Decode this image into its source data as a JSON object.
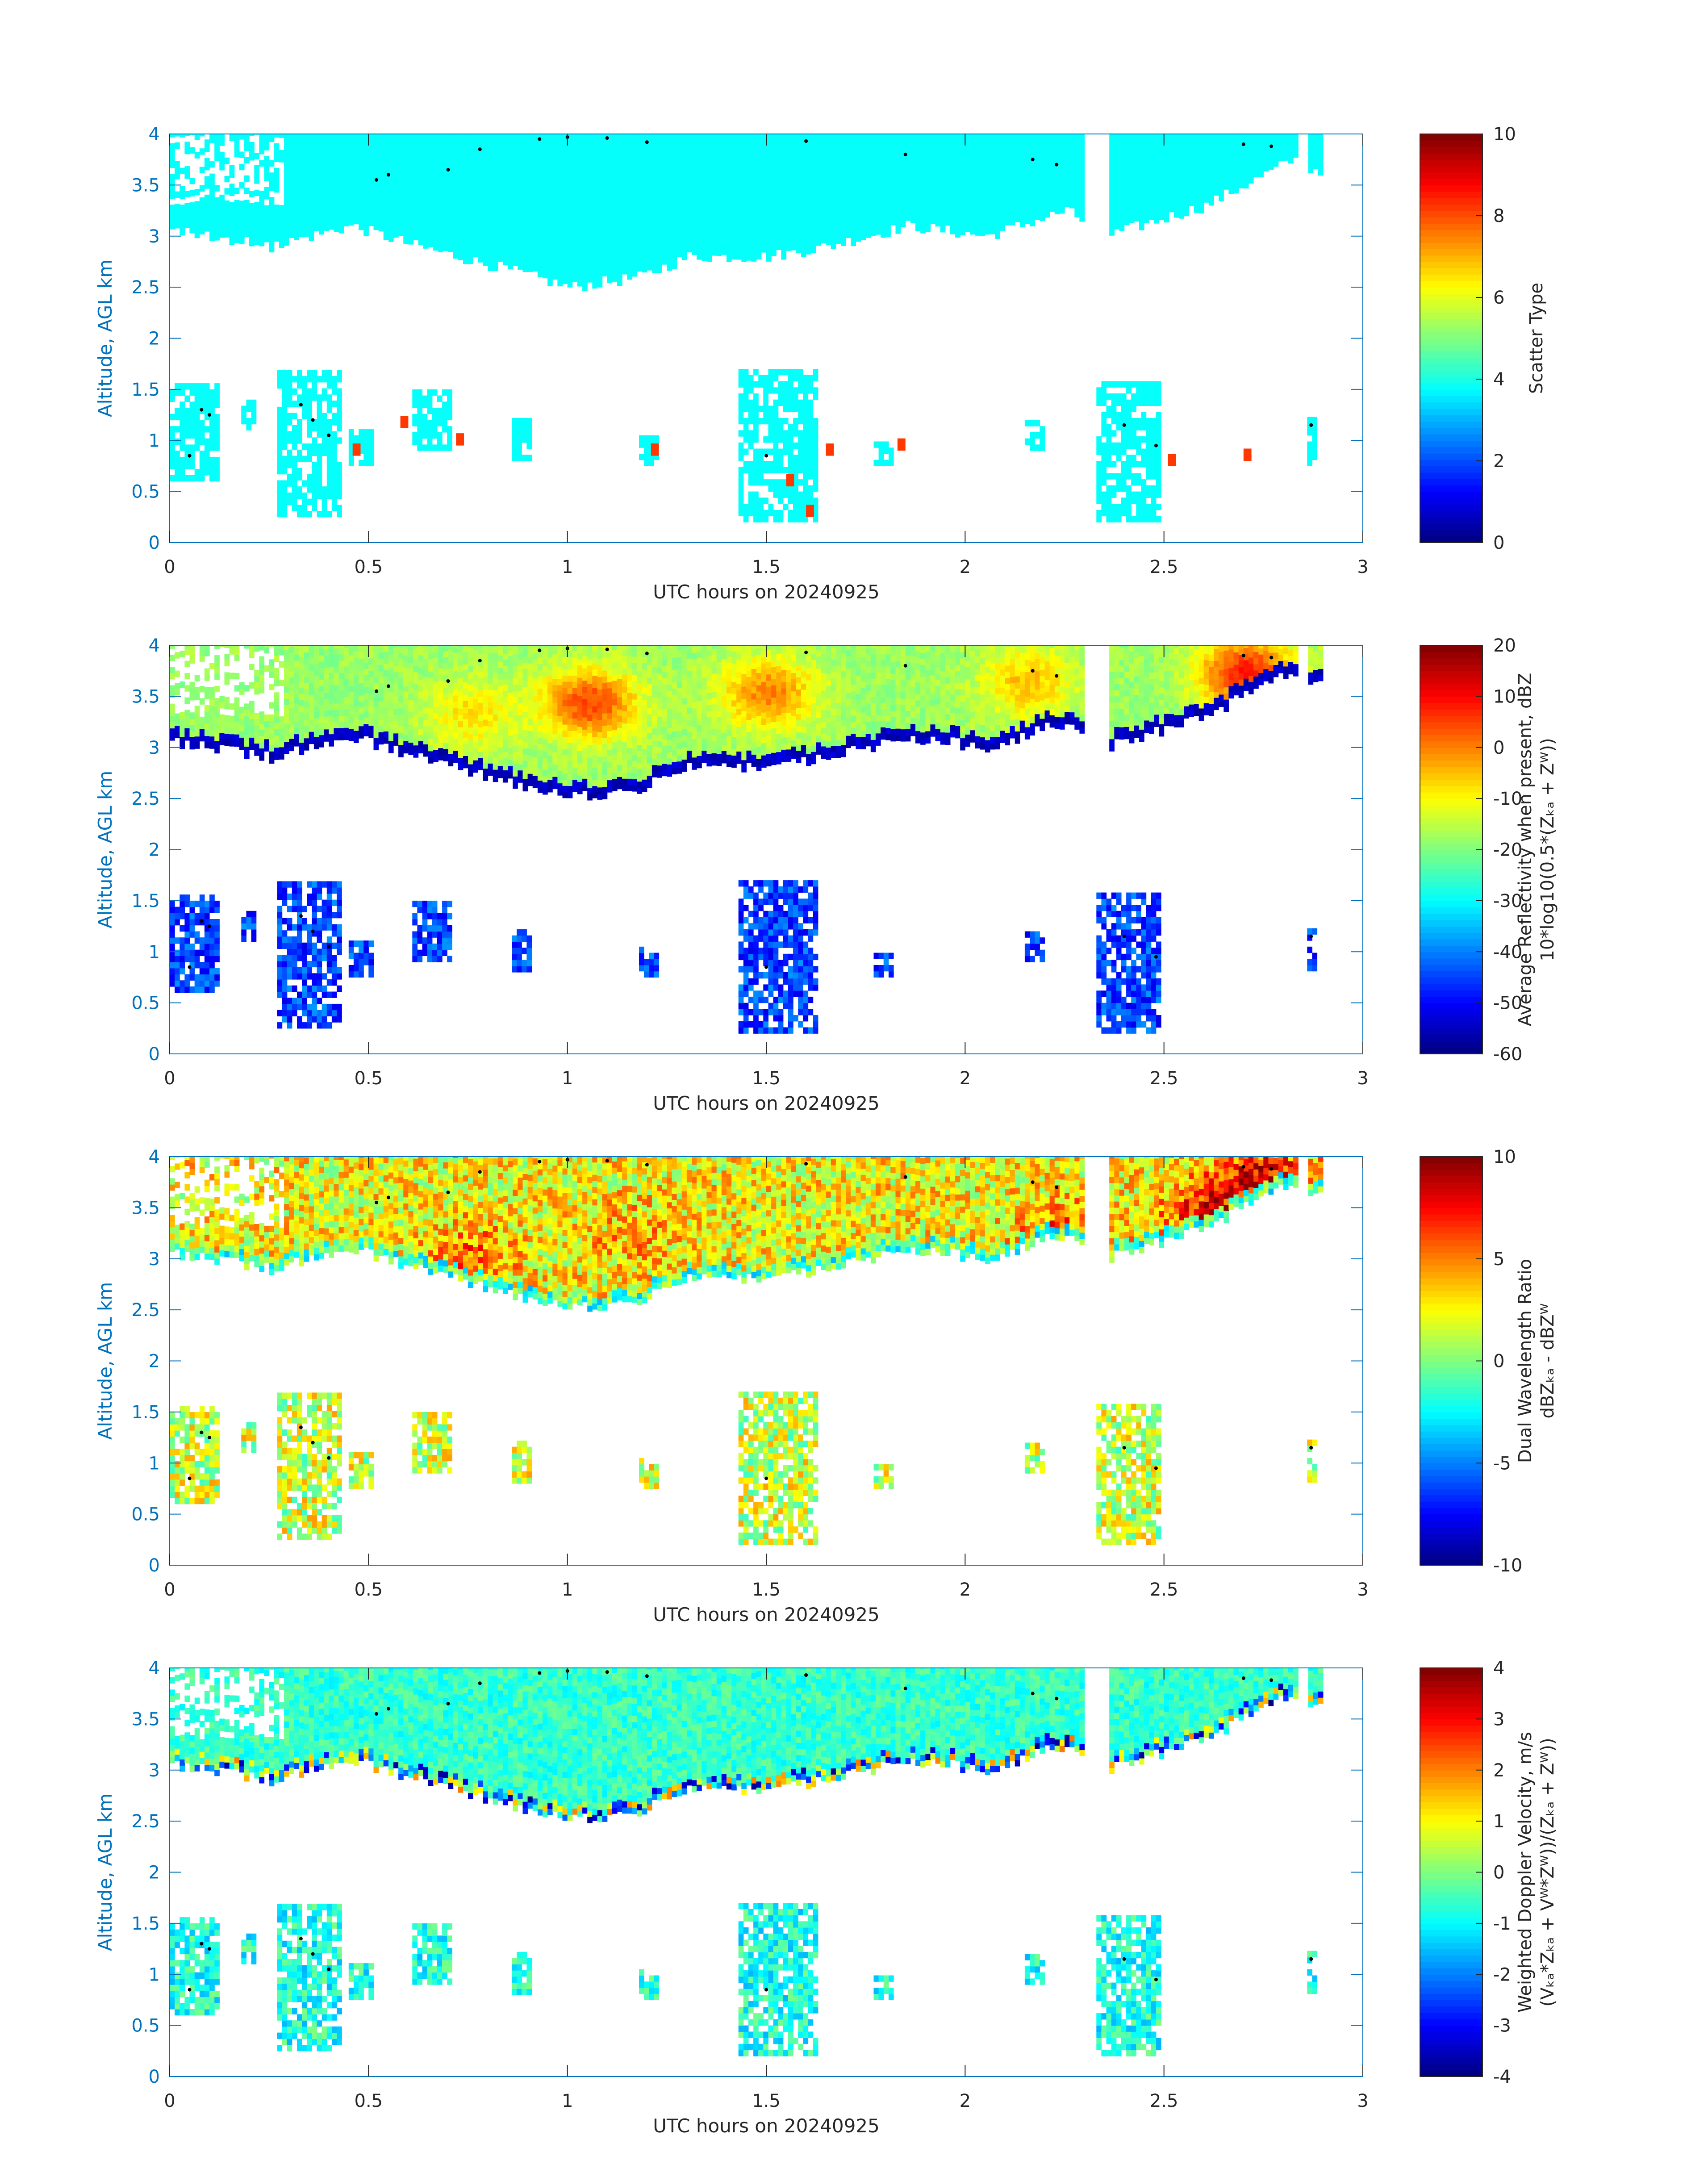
{
  "chart_data": [
    {
      "type": "heatmap",
      "xlabel": "UTC hours on 20240925",
      "ylabel": "Altitude, AGL km",
      "xlim": [
        0,
        3
      ],
      "ylim": [
        0,
        4
      ],
      "xticks": [
        "0",
        "0.5",
        "1",
        "1.5",
        "2",
        "2.5",
        "3"
      ],
      "yticks": [
        "0",
        "0.5",
        "1",
        "1.5",
        "2",
        "2.5",
        "3",
        "3.5",
        "4"
      ],
      "colorbar": {
        "label_lines": [
          "Scatter Type"
        ],
        "range": [
          0,
          10
        ],
        "ticks": [
          "0",
          "2",
          "4",
          "6",
          "8",
          "10"
        ]
      },
      "dominant_value": 3.8,
      "secondary_value": 8.2,
      "upper_layer": {
        "top": [
          3.05,
          2.9,
          3.1,
          2.9,
          2.7,
          2.5,
          2.6,
          2.8,
          2.8,
          2.9,
          3.1,
          3.0,
          3.25,
          3.0,
          3.3,
          3.75,
          3.6
        ],
        "top_x": [
          0,
          0.25,
          0.45,
          0.62,
          0.82,
          1.0,
          1.18,
          1.3,
          1.5,
          1.65,
          1.85,
          2.05,
          2.25,
          2.35,
          2.6,
          2.82,
          2.9
        ],
        "gaps": [
          [
            2.29,
            2.35
          ],
          [
            2.83,
            2.86
          ]
        ]
      },
      "lower_cells": [
        {
          "x": [
            0.0,
            0.12
          ],
          "y": [
            0.6,
            1.55
          ]
        },
        {
          "x": [
            0.18,
            0.21
          ],
          "y": [
            1.1,
            1.35
          ]
        },
        {
          "x": [
            0.27,
            0.43
          ],
          "y": [
            0.25,
            1.65
          ]
        },
        {
          "x": [
            0.45,
            0.51
          ],
          "y": [
            0.75,
            1.1
          ]
        },
        {
          "x": [
            0.61,
            0.7
          ],
          "y": [
            0.9,
            1.45
          ]
        },
        {
          "x": [
            0.86,
            0.9
          ],
          "y": [
            0.8,
            1.2
          ]
        },
        {
          "x": [
            1.18,
            1.22
          ],
          "y": [
            0.75,
            1.0
          ]
        },
        {
          "x": [
            1.43,
            1.62
          ],
          "y": [
            0.2,
            1.65
          ]
        },
        {
          "x": [
            1.77,
            1.81
          ],
          "y": [
            0.75,
            0.95
          ]
        },
        {
          "x": [
            2.15,
            2.2
          ],
          "y": [
            0.9,
            1.15
          ]
        },
        {
          "x": [
            2.33,
            2.49
          ],
          "y": [
            0.2,
            1.55
          ]
        },
        {
          "x": [
            2.86,
            2.88
          ],
          "y": [
            0.75,
            1.2
          ]
        }
      ],
      "secondary_patches": [
        [
          0.46,
          0.85
        ],
        [
          0.58,
          1.12
        ],
        [
          0.72,
          0.95
        ],
        [
          1.21,
          0.85
        ],
        [
          1.55,
          0.55
        ],
        [
          1.6,
          0.25
        ],
        [
          1.65,
          0.85
        ],
        [
          1.83,
          0.9
        ],
        [
          2.51,
          0.75
        ],
        [
          2.7,
          0.8
        ]
      ],
      "markers": [
        [
          0.05,
          0.85
        ],
        [
          0.08,
          1.3
        ],
        [
          0.1,
          1.25
        ],
        [
          0.33,
          1.35
        ],
        [
          0.36,
          1.2
        ],
        [
          0.4,
          1.05
        ],
        [
          0.52,
          3.55
        ],
        [
          0.55,
          3.6
        ],
        [
          0.7,
          3.65
        ],
        [
          0.78,
          3.85
        ],
        [
          0.93,
          3.95
        ],
        [
          1.0,
          3.97
        ],
        [
          1.1,
          3.96
        ],
        [
          1.2,
          3.92
        ],
        [
          1.5,
          0.85
        ],
        [
          1.6,
          3.93
        ],
        [
          1.85,
          3.8
        ],
        [
          2.17,
          3.75
        ],
        [
          2.23,
          3.7
        ],
        [
          2.4,
          1.15
        ],
        [
          2.48,
          0.95
        ],
        [
          2.7,
          3.9
        ],
        [
          2.77,
          3.88
        ],
        [
          2.87,
          1.15
        ]
      ],
      "overlay_field": 0
    },
    {
      "type": "heatmap",
      "xlabel": "UTC hours on 20240925",
      "ylabel": "Altitude, AGL km",
      "xlim": [
        0,
        3
      ],
      "ylim": [
        0,
        4
      ],
      "xticks": [
        "0",
        "0.5",
        "1",
        "1.5",
        "2",
        "2.5",
        "3"
      ],
      "yticks": [
        "0",
        "0.5",
        "1",
        "1.5",
        "2",
        "2.5",
        "3",
        "3.5",
        "4"
      ],
      "colorbar": {
        "label_lines": [
          "Average Reflectivity when present, dBZ",
          "10*log10(0.5*(Zₖₐ + Zᵂ))"
        ],
        "range": [
          -60,
          20
        ],
        "ticks": [
          "-60",
          "-50",
          "-40",
          "-30",
          "-20",
          "-10",
          "0",
          "10",
          "20"
        ]
      },
      "upper_cores": [
        {
          "x": 1.05,
          "y": 3.4,
          "value": 5
        },
        {
          "x": 1.5,
          "y": 3.5,
          "value": 0
        },
        {
          "x": 0.75,
          "y": 3.3,
          "value": -8
        },
        {
          "x": 2.15,
          "y": 3.6,
          "value": -5
        },
        {
          "x": 2.7,
          "y": 3.7,
          "value": 8
        }
      ],
      "upper_background": -18,
      "edge_value": -55,
      "lower_value": -45
    },
    {
      "type": "heatmap",
      "xlabel": "UTC hours on 20240925",
      "ylabel": "Altitude, AGL km",
      "xlim": [
        0,
        3
      ],
      "ylim": [
        0,
        4
      ],
      "xticks": [
        "0",
        "0.5",
        "1",
        "1.5",
        "2",
        "2.5",
        "3"
      ],
      "yticks": [
        "0",
        "0.5",
        "1",
        "1.5",
        "2",
        "2.5",
        "3",
        "3.5",
        "4"
      ],
      "colorbar": {
        "label_lines": [
          "Dual Wavelength Ratio",
          "dBZₖₐ - dBZᵂ"
        ],
        "range": [
          -10,
          10
        ],
        "ticks": [
          "-10",
          "-5",
          "0",
          "5",
          "10"
        ]
      },
      "upper_cores": [
        {
          "x": 2.6,
          "y": 3.4,
          "value": 7
        },
        {
          "x": 2.75,
          "y": 3.75,
          "value": 8
        },
        {
          "x": 0.75,
          "y": 3.0,
          "value": 5
        },
        {
          "x": 1.15,
          "y": 3.2,
          "value": 4
        },
        {
          "x": 2.25,
          "y": 3.2,
          "value": 6
        }
      ],
      "upper_background": 2.5,
      "edge_value": -1,
      "lower_value": 1.5
    },
    {
      "type": "heatmap",
      "xlabel": "UTC hours on 20240925",
      "ylabel": "Altitude, AGL km",
      "xlim": [
        0,
        3
      ],
      "ylim": [
        0,
        4
      ],
      "xticks": [
        "0",
        "0.5",
        "1",
        "1.5",
        "2",
        "2.5",
        "3"
      ],
      "yticks": [
        "0",
        "0.5",
        "1",
        "1.5",
        "2",
        "2.5",
        "3",
        "3.5",
        "4"
      ],
      "colorbar": {
        "label_lines": [
          "Weighted Doppler Velocity, m/s",
          "(Vₖₐ*Zₖₐ + Vᵂ*Zᵂ))/(Zₖₐ + Zᵂ))"
        ],
        "range": [
          -4,
          4
        ],
        "ticks": [
          "-4",
          "-3",
          "-2",
          "-1",
          "0",
          "1",
          "2",
          "3",
          "4"
        ]
      },
      "upper_cores": [],
      "upper_background": -0.6,
      "edge_value": -0.9,
      "lower_value": -0.8
    }
  ]
}
